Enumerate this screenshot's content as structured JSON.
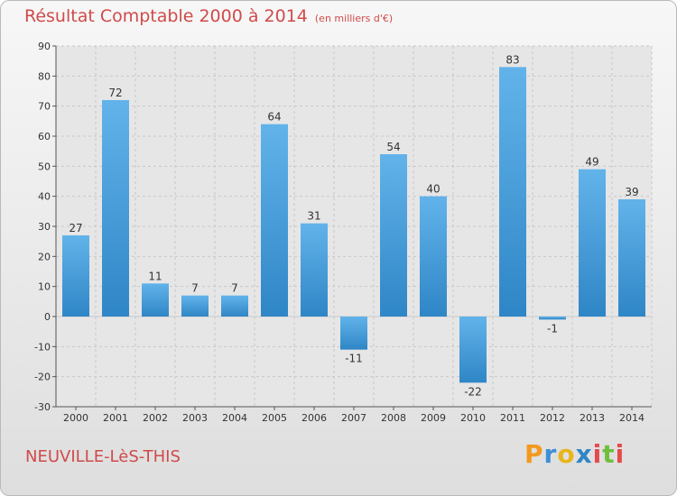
{
  "chart_data": {
    "type": "bar",
    "title": "Résultat Comptable 2000 à 2014",
    "subtitle": "(en milliers d'€)",
    "categories": [
      "2000",
      "2001",
      "2002",
      "2003",
      "2004",
      "2005",
      "2006",
      "2007",
      "2008",
      "2009",
      "2010",
      "2011",
      "2012",
      "2013",
      "2014"
    ],
    "values": [
      27,
      72,
      11,
      7,
      7,
      64,
      31,
      -11,
      54,
      40,
      -22,
      83,
      -1,
      49,
      39
    ],
    "value_labels": [
      "27",
      "72",
      "11",
      "7",
      "7",
      "64",
      "31",
      "-11",
      "54",
      "40",
      "-22",
      "83",
      "-1",
      "49",
      "39"
    ],
    "ylim": [
      -30,
      90
    ],
    "yticks": [
      -30,
      -20,
      -10,
      0,
      10,
      20,
      30,
      40,
      50,
      60,
      70,
      80,
      90
    ],
    "grid": true,
    "xlabel": "",
    "ylabel": ""
  },
  "footer": {
    "commune": "NEUVILLE-LèS-THIS",
    "logo": "Proxiti"
  },
  "colors": {
    "bar_light": "#62b3ea",
    "bar_dark": "#2f86c6",
    "title": "#d04a4a",
    "grid": "#c8c8c8"
  }
}
